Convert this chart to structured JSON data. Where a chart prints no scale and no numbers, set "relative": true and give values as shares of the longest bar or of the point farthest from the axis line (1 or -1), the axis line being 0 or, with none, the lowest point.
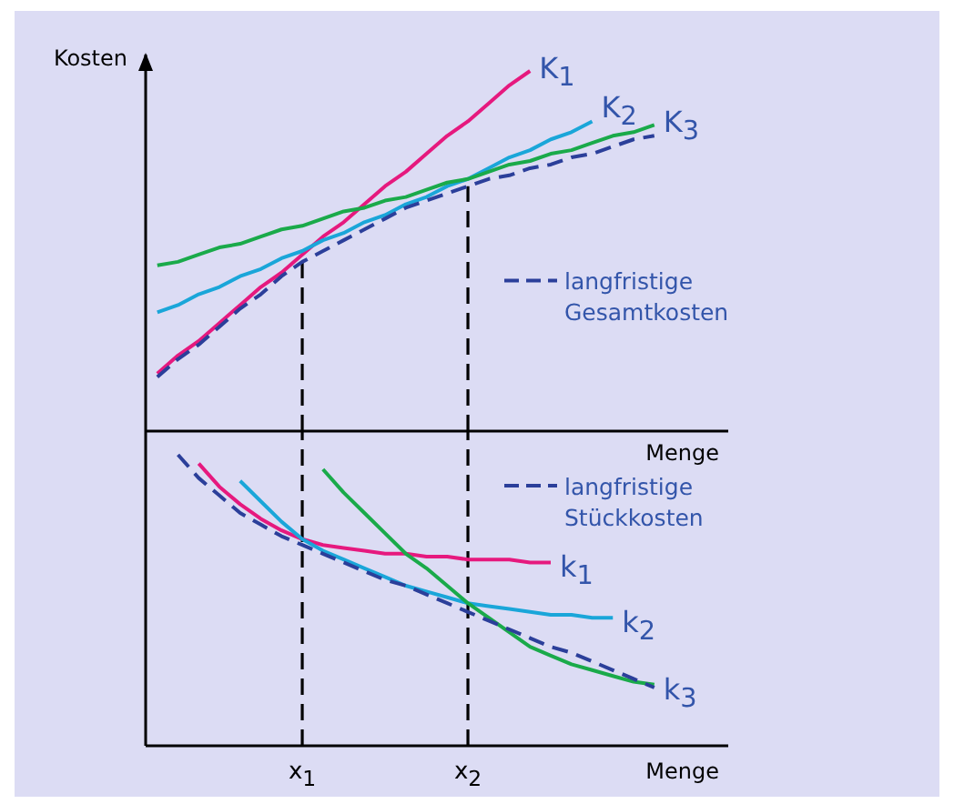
{
  "chart_data": [
    {
      "type": "line",
      "relative": true,
      "ylabel": "Kosten",
      "xlabel": "Menge",
      "tick_labels": false,
      "legend": "right",
      "categories": [
        null,
        null,
        null,
        null,
        null,
        null,
        null,
        "x$_{1}$",
        null,
        null,
        null,
        null,
        null,
        null,
        null,
        "x$_{2}$",
        null,
        null,
        null,
        null,
        null,
        null,
        null,
        null,
        null,
        null,
        null,
        null
      ],
      "ref_lines": [
        {
          "axis": "x",
          "value": "x$_{1}$",
          "color": "#000000",
          "line_style": "dashed"
        },
        {
          "axis": "x",
          "value": "x$_{2}$",
          "color": "#000000",
          "line_style": "dashed"
        }
      ],
      "series": [
        {
          "name": "K$_{1}$",
          "color": "#e6197e",
          "values": [
            0.16,
            0.21,
            0.25,
            0.3,
            0.35,
            0.4,
            0.44,
            0.49,
            0.54,
            0.58,
            0.63,
            0.68,
            0.72,
            0.77,
            0.82,
            0.86,
            0.91,
            0.96,
            1.0,
            null,
            null,
            null,
            null,
            null,
            null,
            null,
            null,
            null
          ]
        },
        {
          "name": "K$_{2}$",
          "color": "#1aa6d9",
          "values": [
            0.33,
            0.35,
            0.38,
            0.4,
            0.43,
            0.45,
            0.48,
            0.5,
            0.53,
            0.55,
            0.58,
            0.6,
            0.63,
            0.65,
            0.68,
            0.7,
            0.73,
            0.76,
            0.78,
            0.81,
            0.83,
            0.86,
            null,
            null,
            null,
            null,
            null,
            null
          ]
        },
        {
          "name": "K$_{3}$",
          "color": "#1aaa4a",
          "values": [
            0.46,
            0.47,
            0.49,
            0.51,
            0.52,
            0.54,
            0.56,
            0.57,
            0.59,
            0.61,
            0.62,
            0.64,
            0.65,
            0.67,
            0.69,
            0.7,
            0.72,
            0.74,
            0.75,
            0.77,
            0.78,
            0.8,
            0.82,
            0.83,
            0.85,
            null,
            null,
            null
          ]
        },
        {
          "name": "langfristige Gesamtkosten",
          "color": "#2b3f9a",
          "line_style": "dashed",
          "values": [
            0.15,
            0.2,
            0.24,
            0.29,
            0.34,
            0.38,
            0.43,
            0.47,
            0.5,
            0.53,
            0.56,
            0.59,
            0.62,
            0.64,
            0.66,
            0.68,
            0.7,
            0.71,
            0.73,
            0.74,
            0.76,
            0.77,
            0.79,
            0.81,
            0.82,
            null,
            null,
            null
          ]
        }
      ]
    },
    {
      "type": "line",
      "relative": true,
      "xlabel": "Menge",
      "legend": "top right",
      "categories": [
        null,
        null,
        null,
        null,
        null,
        null,
        null,
        "x$_{1}$",
        null,
        null,
        null,
        null,
        null,
        null,
        null,
        "x$_{2}$",
        null,
        null,
        null,
        null,
        null,
        null,
        null,
        null,
        null,
        null,
        null,
        null
      ],
      "ref_lines": [
        {
          "axis": "x",
          "value": "x$_{1}$",
          "color": "#000000",
          "line_style": "dashed"
        },
        {
          "axis": "x",
          "value": "x$_{2}$",
          "color": "#000000",
          "line_style": "dashed"
        }
      ],
      "series": [
        {
          "name": "k$_{1}$",
          "color": "#e6197e",
          "values": [
            null,
            null,
            0.97,
            0.89,
            0.83,
            0.78,
            0.74,
            0.71,
            0.69,
            0.68,
            0.67,
            0.66,
            0.66,
            0.65,
            0.65,
            0.64,
            0.64,
            0.64,
            0.63,
            0.63,
            null,
            null,
            null,
            null,
            null,
            null,
            null,
            null
          ]
        },
        {
          "name": "k$_{2}$",
          "color": "#1aa6d9",
          "values": [
            null,
            null,
            null,
            null,
            0.91,
            0.84,
            0.77,
            0.71,
            0.67,
            0.64,
            0.61,
            0.58,
            0.55,
            0.53,
            0.51,
            0.49,
            0.48,
            0.47,
            0.46,
            0.45,
            0.45,
            0.44,
            0.44,
            null,
            null,
            null,
            null,
            null
          ]
        },
        {
          "name": "k$_{3}$",
          "color": "#1aaa4a",
          "values": [
            null,
            null,
            null,
            null,
            null,
            null,
            null,
            null,
            0.95,
            0.87,
            0.8,
            0.73,
            0.66,
            0.61,
            0.55,
            0.49,
            0.44,
            0.39,
            0.34,
            0.31,
            0.28,
            0.26,
            0.24,
            0.22,
            0.21,
            null,
            null,
            null
          ]
        },
        {
          "name": "langfristige Stückkosten",
          "color": "#2b3f9a",
          "line_style": "dashed",
          "values": [
            null,
            1.0,
            0.92,
            0.86,
            0.8,
            0.76,
            0.72,
            0.69,
            0.66,
            0.63,
            0.6,
            0.57,
            0.55,
            0.52,
            0.49,
            0.46,
            0.43,
            0.4,
            0.37,
            0.34,
            0.32,
            0.29,
            0.26,
            0.23,
            0.2,
            null,
            null,
            null
          ]
        }
      ]
    }
  ]
}
